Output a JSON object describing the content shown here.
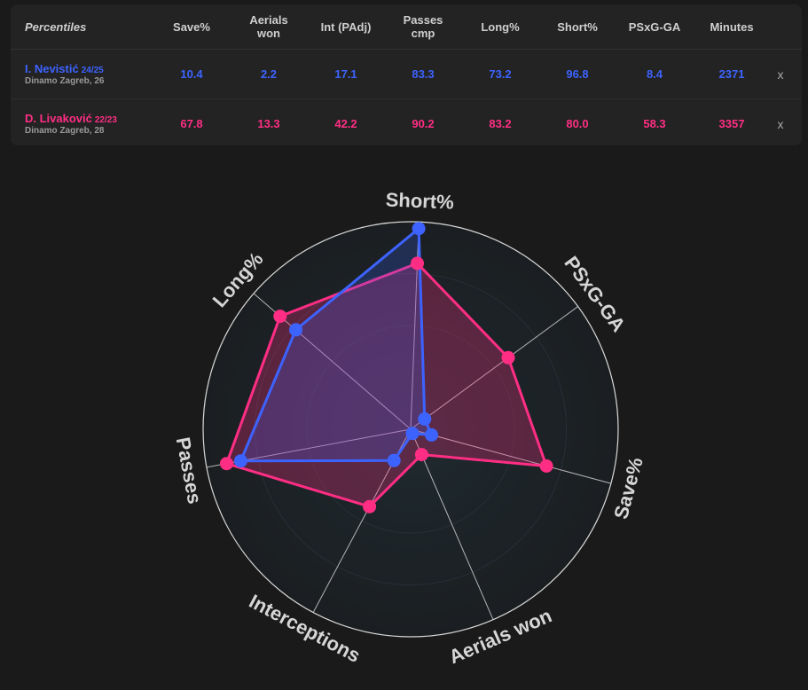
{
  "table": {
    "columns": [
      {
        "key": "title",
        "label": "Percentiles"
      },
      {
        "key": "save",
        "label": "Save%"
      },
      {
        "key": "aerials",
        "label": "Aerials\nwon"
      },
      {
        "key": "int",
        "label": "Int (PAdj)"
      },
      {
        "key": "passes",
        "label": "Passes\ncmp"
      },
      {
        "key": "long",
        "label": "Long%"
      },
      {
        "key": "short",
        "label": "Short%"
      },
      {
        "key": "psxg",
        "label": "PSxG-GA"
      },
      {
        "key": "minutes",
        "label": "Minutes"
      }
    ],
    "rows": [
      {
        "name": "I. Nevistić",
        "season": "24/25",
        "sub": "Dinamo Zagreb, 26",
        "values": [
          "10.4",
          "2.2",
          "17.1",
          "83.3",
          "73.2",
          "96.8",
          "8.4",
          "2371"
        ],
        "remove": "x"
      },
      {
        "name": "D. Livaković",
        "season": "22/23",
        "sub": "Dinamo Zagreb, 28",
        "values": [
          "67.8",
          "13.3",
          "42.2",
          "90.2",
          "83.2",
          "80.0",
          "58.3",
          "3357"
        ],
        "remove": "x"
      }
    ]
  },
  "colors": {
    "player1": "#3d63ff",
    "player2": "#ff2e84",
    "fill": "#6a2a6e"
  },
  "chart_data": {
    "type": "radar",
    "axes": [
      "Short%",
      "PSxG-GA",
      "Save%",
      "Aerials won",
      "Interceptions",
      "Passes",
      "Long%"
    ],
    "range": [
      0,
      100
    ],
    "series": [
      {
        "name": "I. Nevistić 24/25",
        "values": [
          96.8,
          8.4,
          10.4,
          2.2,
          17.1,
          83.3,
          73.2
        ]
      },
      {
        "name": "D. Livaković 22/23",
        "values": [
          80.0,
          58.3,
          67.8,
          13.3,
          42.2,
          90.2,
          83.2
        ]
      }
    ]
  }
}
